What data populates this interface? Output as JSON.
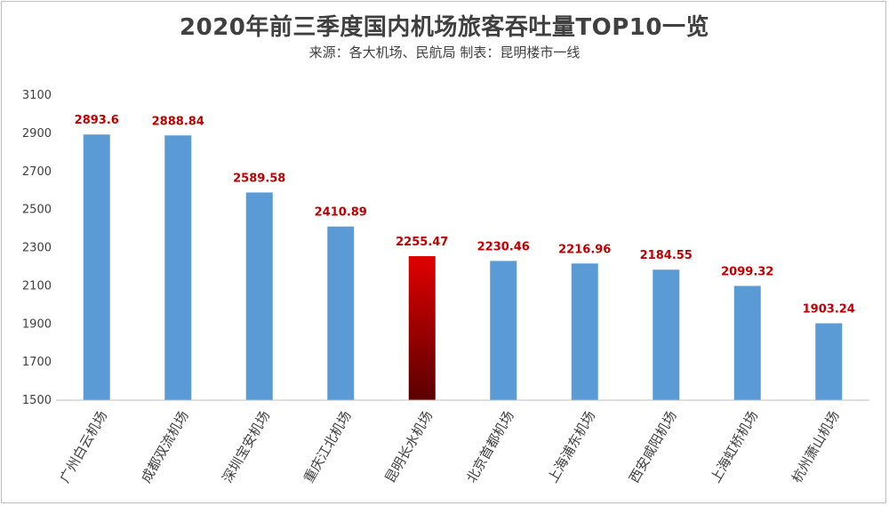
{
  "chart_data": {
    "type": "bar",
    "title": "2020年前三季度国内机场旅客吞吐量TOP10一览",
    "subtitle": "来源：各大机场、民航局  制表：昆明楼市一线",
    "categories": [
      "广州白云机场",
      "成都双流机场",
      "深圳宝安机场",
      "重庆江北机场",
      "昆明长水机场",
      "北京首都机场",
      "上海浦东机场",
      "西安咸阳机场",
      "上海虹桥机场",
      "杭州萧山机场"
    ],
    "values": [
      2893.6,
      2888.84,
      2589.58,
      2410.89,
      2255.47,
      2230.46,
      2216.96,
      2184.55,
      2099.32,
      1903.24
    ],
    "value_labels": [
      "2893.6",
      "2888.84",
      "2589.58",
      "2410.89",
      "2255.47",
      "2230.46",
      "2216.96",
      "2184.55",
      "2099.32",
      "1903.24"
    ],
    "ylim": [
      1500,
      3100
    ],
    "yticks": [
      1500,
      1700,
      1900,
      2100,
      2300,
      2500,
      2700,
      2900,
      3100
    ],
    "grid": false,
    "highlight_index": 4,
    "colors": {
      "bar": "#5b9bd5",
      "highlight_top": "#e00000",
      "highlight_bottom": "#5a0000",
      "data_label": "#c00000",
      "axis": "#bfbfbf"
    }
  }
}
